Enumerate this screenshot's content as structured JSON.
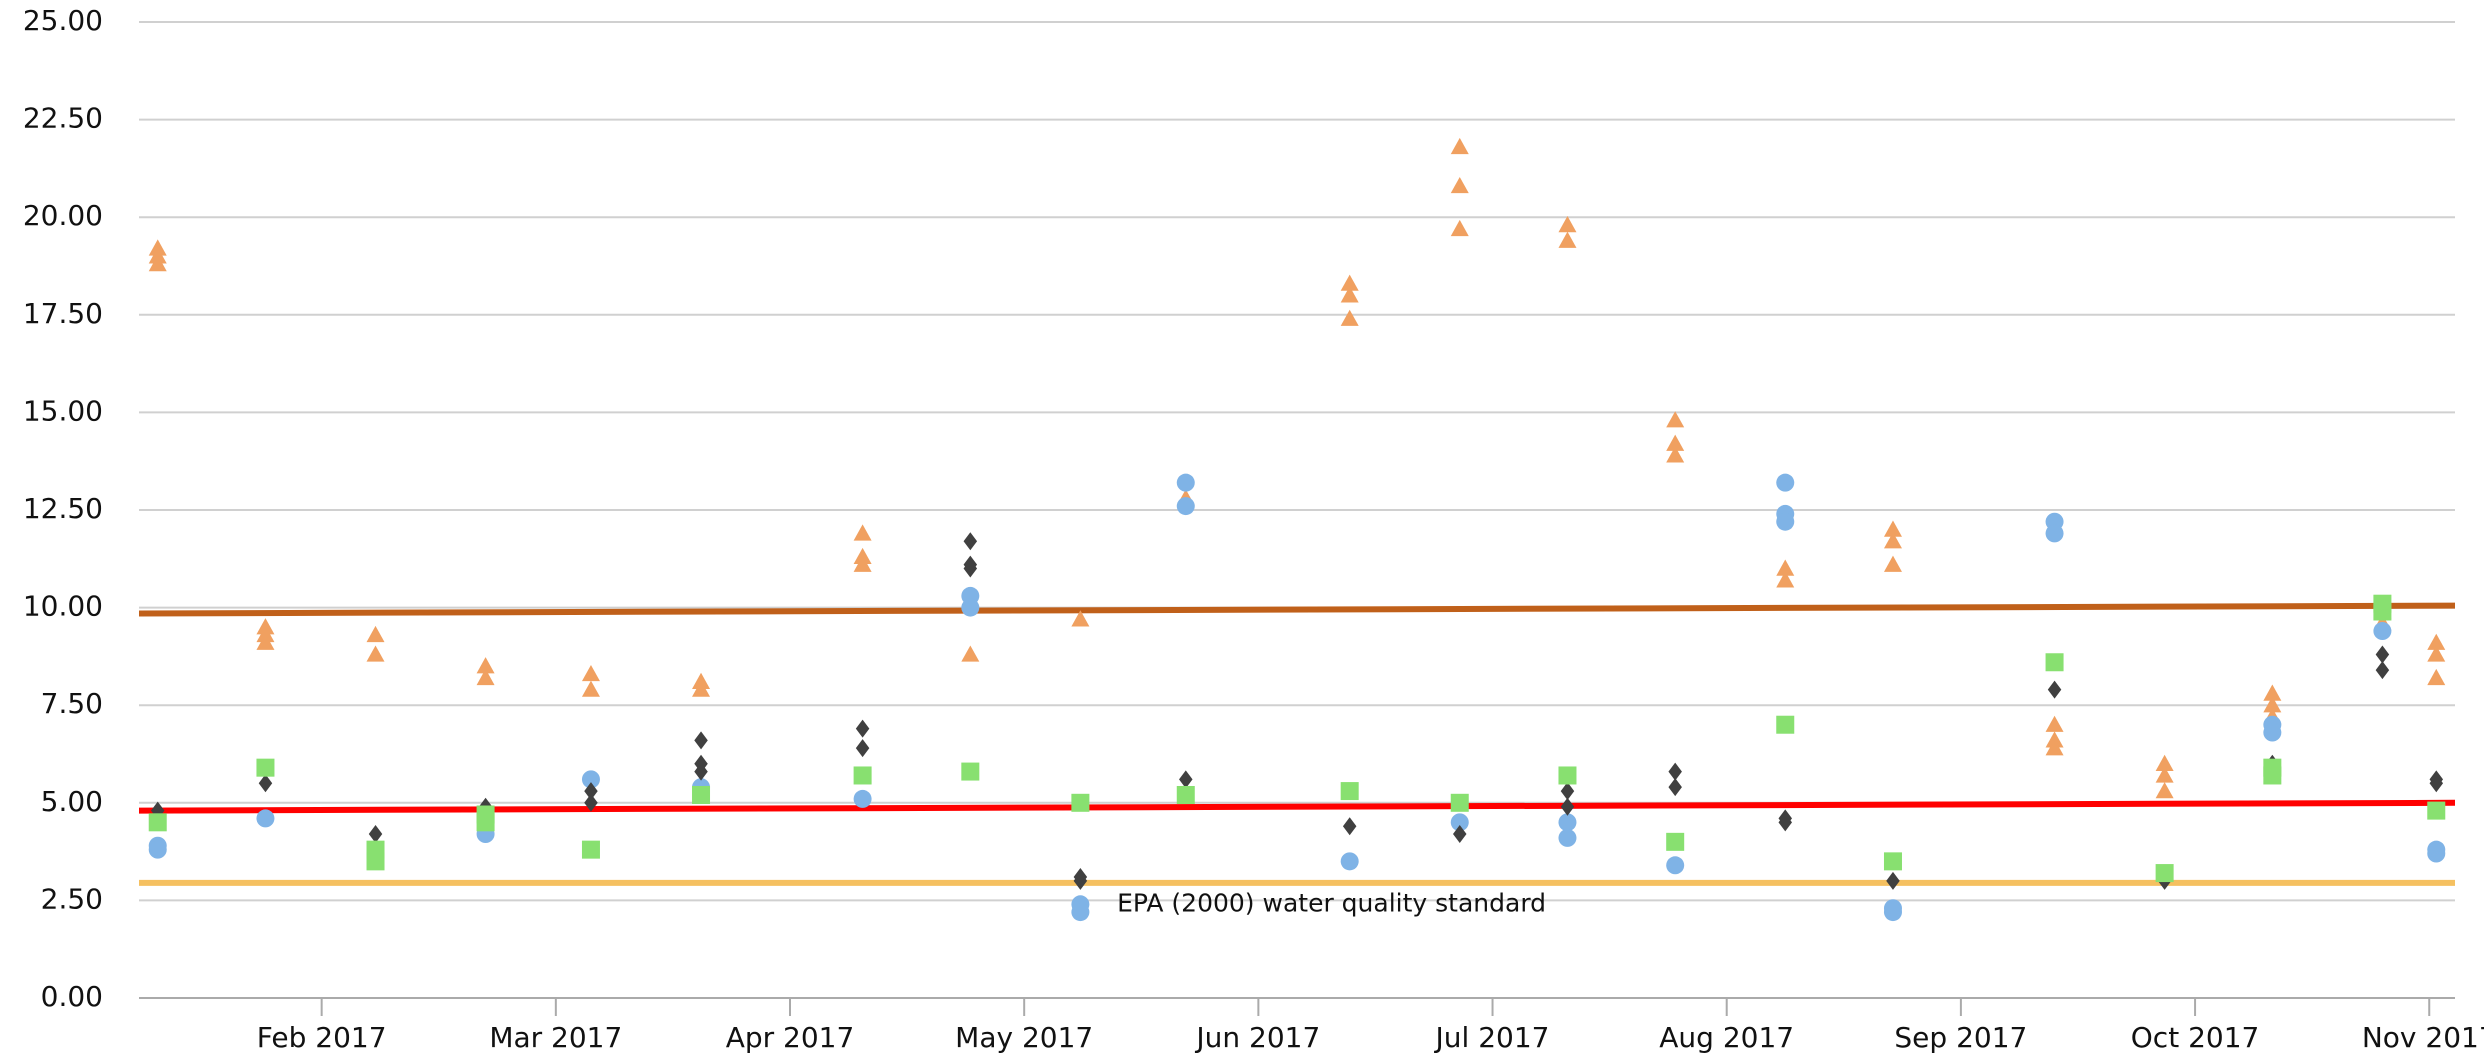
{
  "chart_data": {
    "type": "scatter",
    "annotations": [
      {
        "text": "EPA (2000) water quality standard",
        "x": 5.32,
        "y": 2.5
      }
    ],
    "xlim": [
      1.22,
      11.11
    ],
    "ylim": [
      0,
      25
    ],
    "xticks": [
      {
        "value": 2,
        "label": "Feb 2017"
      },
      {
        "value": 3,
        "label": "Mar 2017"
      },
      {
        "value": 4,
        "label": "Apr 2017"
      },
      {
        "value": 5,
        "label": "May 2017"
      },
      {
        "value": 6,
        "label": "Jun 2017"
      },
      {
        "value": 7,
        "label": "Jul 2017"
      },
      {
        "value": 8,
        "label": "Aug 2017"
      },
      {
        "value": 9,
        "label": "Sep 2017"
      },
      {
        "value": 10,
        "label": "Oct 2017"
      },
      {
        "value": 11,
        "label": "Nov 2017"
      }
    ],
    "yticks": [
      {
        "value": 0,
        "label": "0.00"
      },
      {
        "value": 2.5,
        "label": "2.50"
      },
      {
        "value": 5,
        "label": "5.00"
      },
      {
        "value": 7.5,
        "label": "7.50"
      },
      {
        "value": 10,
        "label": "10.00"
      },
      {
        "value": 12.5,
        "label": "12.50"
      },
      {
        "value": 15,
        "label": "15.00"
      },
      {
        "value": 17.5,
        "label": "17.50"
      },
      {
        "value": 20,
        "label": "20.00"
      },
      {
        "value": 22.5,
        "label": "22.50"
      },
      {
        "value": 25,
        "label": "25.00"
      }
    ],
    "grid": true,
    "series": [
      {
        "marker": "triangle",
        "color": "#f0a060",
        "x": [
          1.3,
          1.3,
          1.3,
          1.76,
          1.76,
          1.76,
          2.23,
          2.23,
          2.7,
          2.7,
          3.15,
          3.15,
          3.62,
          3.62,
          4.31,
          4.31,
          4.31,
          4.77,
          5.24,
          5.69,
          6.39,
          6.39,
          6.39,
          6.86,
          6.86,
          6.86,
          7.32,
          7.32,
          7.78,
          7.78,
          7.78,
          8.25,
          8.25,
          8.71,
          8.71,
          8.71,
          9.4,
          9.4,
          9.4,
          9.87,
          9.87,
          9.87,
          10.33,
          10.33,
          10.33,
          10.8,
          10.8,
          11.03,
          11.03,
          11.03
        ],
        "values": [
          19.2,
          19.0,
          18.8,
          9.5,
          9.3,
          9.1,
          9.3,
          8.8,
          8.5,
          8.2,
          8.3,
          7.9,
          8.1,
          7.9,
          11.9,
          11.3,
          11.1,
          8.8,
          9.7,
          12.8,
          18.3,
          18.0,
          17.4,
          21.8,
          20.8,
          19.7,
          19.8,
          19.4,
          14.8,
          14.2,
          13.9,
          11.0,
          10.7,
          12.0,
          11.7,
          11.1,
          7.0,
          6.6,
          6.4,
          6.0,
          5.7,
          5.3,
          7.8,
          7.5,
          7.2,
          9.9,
          9.6,
          9.1,
          8.8,
          8.2
        ]
      },
      {
        "marker": "circle",
        "color": "#7fb3e6",
        "x": [
          1.3,
          1.3,
          1.76,
          2.7,
          3.15,
          3.62,
          4.31,
          4.77,
          4.77,
          5.24,
          5.24,
          5.69,
          5.69,
          6.39,
          6.86,
          7.32,
          7.32,
          7.78,
          8.25,
          8.25,
          8.25,
          8.71,
          8.71,
          9.4,
          9.4,
          10.33,
          10.33,
          10.8,
          11.03,
          11.03
        ],
        "values": [
          3.9,
          3.8,
          4.6,
          4.2,
          5.6,
          5.4,
          5.1,
          10.3,
          10.0,
          2.4,
          2.2,
          13.2,
          12.6,
          3.5,
          4.5,
          4.5,
          4.1,
          3.4,
          13.2,
          12.4,
          12.2,
          2.3,
          2.2,
          12.2,
          11.9,
          7.0,
          6.8,
          9.4,
          3.8,
          3.7
        ]
      },
      {
        "marker": "diamond",
        "color": "#404040",
        "x": [
          1.3,
          1.76,
          2.23,
          2.7,
          3.15,
          3.15,
          3.62,
          3.62,
          3.62,
          4.31,
          4.31,
          4.77,
          4.77,
          4.77,
          5.24,
          5.24,
          5.69,
          6.39,
          6.86,
          7.32,
          7.32,
          7.78,
          7.78,
          8.25,
          8.25,
          8.71,
          9.4,
          9.87,
          10.33,
          10.8,
          10.8,
          11.03,
          11.03
        ],
        "values": [
          4.8,
          5.5,
          4.2,
          4.9,
          5.3,
          5.0,
          6.6,
          6.0,
          5.8,
          6.9,
          6.4,
          11.7,
          11.1,
          11.0,
          3.1,
          3.0,
          5.6,
          4.4,
          4.2,
          5.3,
          4.9,
          5.8,
          5.4,
          4.6,
          4.5,
          3.0,
          7.9,
          3.0,
          6.0,
          8.8,
          8.4,
          5.6,
          5.5
        ]
      },
      {
        "marker": "square",
        "color": "#88e070",
        "x": [
          1.3,
          1.76,
          2.23,
          2.23,
          2.7,
          2.7,
          3.15,
          3.62,
          4.31,
          4.77,
          5.24,
          5.69,
          6.39,
          6.86,
          7.32,
          7.78,
          8.25,
          8.71,
          9.4,
          9.87,
          10.33,
          10.33,
          10.8,
          10.8,
          11.03
        ],
        "values": [
          4.5,
          5.9,
          3.8,
          3.5,
          4.7,
          4.5,
          3.8,
          5.2,
          5.7,
          5.8,
          5.0,
          5.2,
          5.3,
          5.0,
          5.7,
          4.0,
          7.0,
          3.5,
          8.6,
          3.2,
          5.9,
          5.7,
          10.1,
          9.9,
          4.8
        ]
      },
      {
        "marker": "line",
        "color": "#c0601a",
        "x": [
          1.22,
          11.11
        ],
        "values": [
          9.85,
          10.05
        ]
      },
      {
        "marker": "line",
        "color": "#ff0000",
        "x": [
          1.22,
          11.11
        ],
        "values": [
          4.8,
          5.0
        ]
      },
      {
        "marker": "line",
        "color": "#f5c060",
        "x": [
          1.22,
          11.11
        ],
        "values": [
          2.95,
          2.95
        ]
      }
    ]
  }
}
